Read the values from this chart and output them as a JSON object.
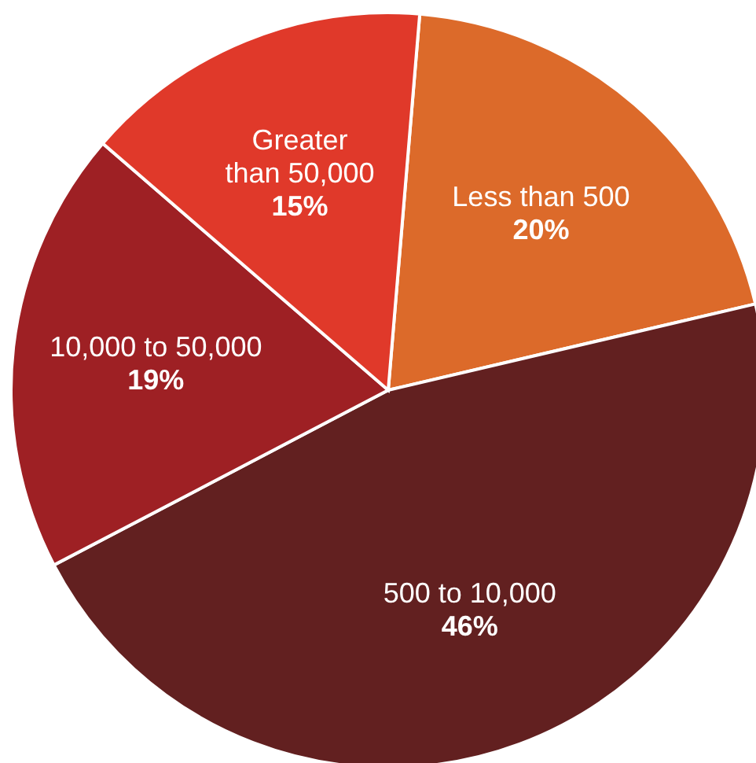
{
  "chart_data": {
    "type": "pie",
    "categories": [
      "Less than 500",
      "500 to 10,000",
      "10,000 to 50,000",
      "Greater than 50,000"
    ],
    "values": [
      20,
      46,
      19,
      15
    ],
    "value_labels": [
      "20%",
      "46%",
      "19%",
      "15%"
    ],
    "colors": [
      "#dc6a2a",
      "#622020",
      "#9e2024",
      "#e0392a"
    ]
  }
}
